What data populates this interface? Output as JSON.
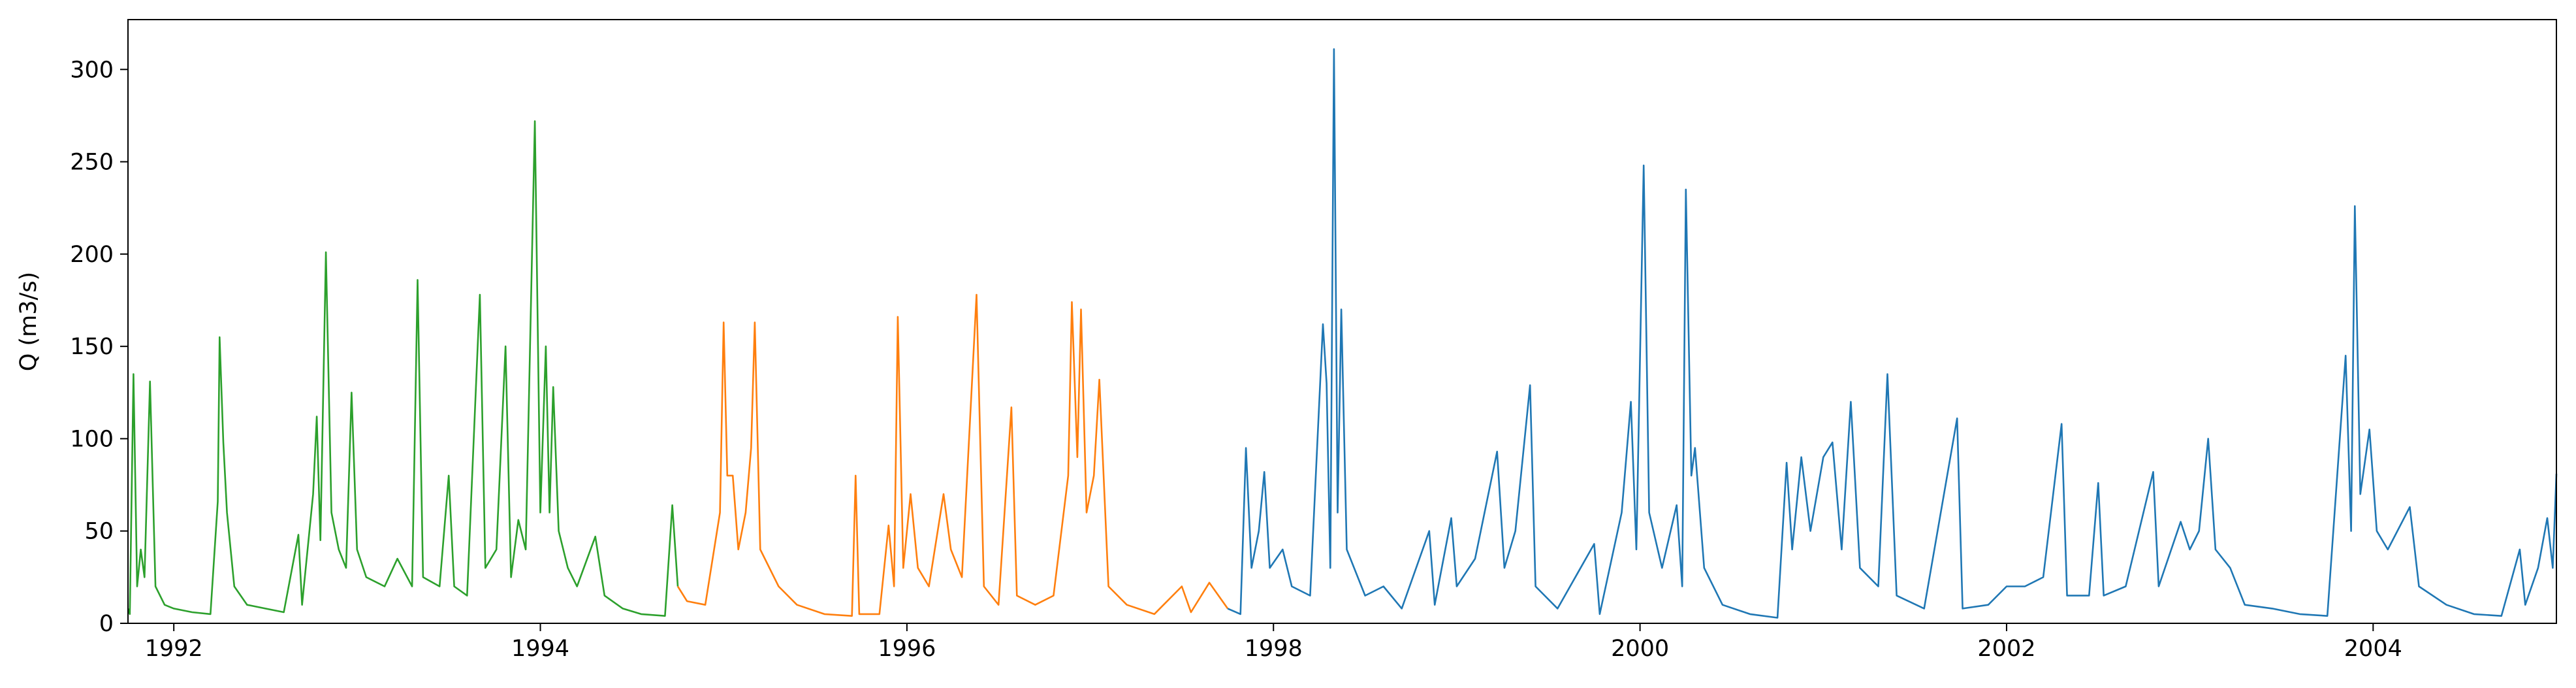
{
  "chart_data": {
    "type": "line",
    "y_label": "Q (m3/s)",
    "xlim": [
      1991.75,
      2005.0
    ],
    "xticks": [
      1992,
      1994,
      1996,
      1998,
      2000,
      2002,
      2004
    ],
    "ylim": [
      0,
      327
    ],
    "yticks": [
      0,
      50,
      100,
      150,
      200,
      250,
      300
    ],
    "series": [
      {
        "color": "#2ca02c",
        "x": [
          1991.75,
          1991.76,
          1991.78,
          1991.8,
          1991.82,
          1991.84,
          1991.87,
          1991.9,
          1991.95,
          1992.0,
          1992.1,
          1992.2,
          1992.24,
          1992.25,
          1992.27,
          1992.29,
          1992.33,
          1992.4,
          1992.5,
          1992.6,
          1992.68,
          1992.7,
          1992.76,
          1992.78,
          1992.8,
          1992.83,
          1992.86,
          1992.9,
          1992.94,
          1992.97,
          1993.0,
          1993.05,
          1993.15,
          1993.22,
          1993.3,
          1993.33,
          1993.36,
          1993.45,
          1993.5,
          1993.53,
          1993.6,
          1993.67,
          1993.7,
          1993.76,
          1993.81,
          1993.84,
          1993.88,
          1993.92,
          1993.97,
          1994.0,
          1994.03,
          1994.05,
          1994.07,
          1994.1,
          1994.15,
          1994.2,
          1994.3,
          1994.35,
          1994.45,
          1994.55,
          1994.68,
          1994.72,
          1994.75
        ],
        "values": [
          8,
          5,
          135,
          20,
          40,
          25,
          131,
          20,
          10,
          8,
          6,
          5,
          66,
          155,
          98,
          60,
          20,
          10,
          8,
          6,
          48,
          10,
          70,
          112,
          45,
          201,
          60,
          40,
          30,
          125,
          40,
          25,
          20,
          35,
          20,
          186,
          25,
          20,
          80,
          20,
          15,
          178,
          30,
          40,
          150,
          25,
          56,
          40,
          272,
          60,
          150,
          60,
          128,
          50,
          30,
          20,
          47,
          15,
          8,
          5,
          4,
          64,
          20
        ]
      },
      {
        "color": "#ff7f0e",
        "x": [
          1994.75,
          1994.8,
          1994.9,
          1994.98,
          1995.0,
          1995.02,
          1995.05,
          1995.08,
          1995.12,
          1995.15,
          1995.17,
          1995.2,
          1995.3,
          1995.4,
          1995.55,
          1995.7,
          1995.72,
          1995.74,
          1995.85,
          1995.9,
          1995.93,
          1995.95,
          1995.98,
          1996.02,
          1996.06,
          1996.12,
          1996.2,
          1996.24,
          1996.3,
          1996.38,
          1996.42,
          1996.5,
          1996.57,
          1996.6,
          1996.7,
          1996.8,
          1996.88,
          1996.9,
          1996.93,
          1996.95,
          1996.98,
          1997.02,
          1997.05,
          1997.1,
          1997.2,
          1997.35,
          1997.5,
          1997.55,
          1997.65,
          1997.75
        ],
        "values": [
          20,
          12,
          10,
          60,
          163,
          80,
          80,
          40,
          60,
          95,
          163,
          40,
          20,
          10,
          5,
          4,
          80,
          5,
          5,
          53,
          20,
          166,
          30,
          70,
          30,
          20,
          70,
          40,
          25,
          178,
          20,
          10,
          117,
          15,
          10,
          15,
          80,
          174,
          90,
          170,
          60,
          80,
          132,
          20,
          10,
          5,
          20,
          6,
          22,
          8
        ]
      },
      {
        "color": "#1f77b4",
        "x": [
          1997.75,
          1997.82,
          1997.85,
          1997.88,
          1997.92,
          1997.95,
          1997.98,
          1998.05,
          1998.1,
          1998.2,
          1998.27,
          1998.29,
          1998.31,
          1998.33,
          1998.35,
          1998.37,
          1998.4,
          1998.5,
          1998.6,
          1998.7,
          1998.85,
          1998.88,
          1998.97,
          1999.0,
          1999.1,
          1999.22,
          1999.26,
          1999.32,
          1999.4,
          1999.43,
          1999.55,
          1999.75,
          1999.78,
          1999.9,
          1999.95,
          1999.98,
          2000.02,
          2000.05,
          2000.12,
          2000.2,
          2000.23,
          2000.25,
          2000.28,
          2000.3,
          2000.35,
          2000.45,
          2000.6,
          2000.75,
          2000.8,
          2000.83,
          2000.88,
          2000.93,
          2001.0,
          2001.05,
          2001.1,
          2001.15,
          2001.2,
          2001.3,
          2001.35,
          2001.4,
          2001.55,
          2001.73,
          2001.76,
          2001.9,
          2002.0,
          2002.1,
          2002.2,
          2002.3,
          2002.33,
          2002.45,
          2002.5,
          2002.53,
          2002.65,
          2002.8,
          2002.83,
          2002.95,
          2003.0,
          2003.05,
          2003.1,
          2003.14,
          2003.22,
          2003.3,
          2003.45,
          2003.6,
          2003.75,
          2003.85,
          2003.88,
          2003.9,
          2003.93,
          2003.98,
          2004.02,
          2004.08,
          2004.2,
          2004.25,
          2004.4,
          2004.55,
          2004.7,
          2004.8,
          2004.83,
          2004.9,
          2004.95,
          2004.98,
          2005.0
        ],
        "values": [
          8,
          5,
          95,
          30,
          50,
          82,
          30,
          40,
          20,
          15,
          162,
          130,
          30,
          311,
          60,
          170,
          40,
          15,
          20,
          8,
          50,
          10,
          57,
          20,
          35,
          93,
          30,
          50,
          129,
          20,
          8,
          43,
          5,
          60,
          120,
          40,
          248,
          60,
          30,
          64,
          20,
          235,
          80,
          95,
          30,
          10,
          5,
          3,
          87,
          40,
          90,
          50,
          90,
          98,
          40,
          120,
          30,
          20,
          135,
          15,
          8,
          111,
          8,
          10,
          20,
          20,
          25,
          108,
          15,
          15,
          76,
          15,
          20,
          82,
          20,
          55,
          40,
          50,
          100,
          40,
          30,
          10,
          8,
          5,
          4,
          145,
          50,
          226,
          70,
          105,
          50,
          40,
          63,
          20,
          10,
          5,
          4,
          40,
          10,
          30,
          57,
          30,
          81
        ]
      }
    ]
  }
}
